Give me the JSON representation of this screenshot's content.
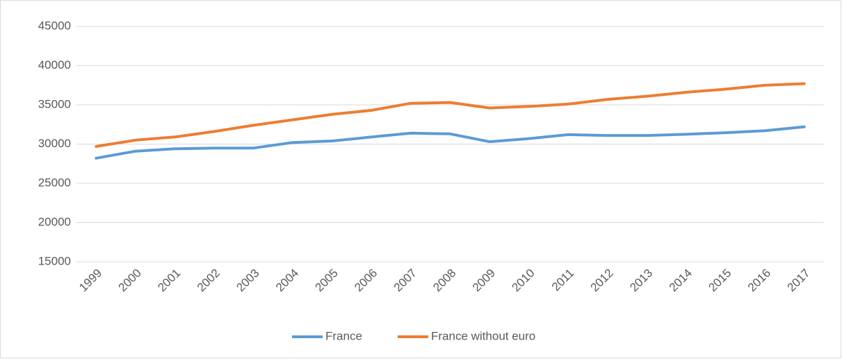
{
  "chart_data": {
    "type": "line",
    "categories": [
      "1999",
      "2000",
      "2001",
      "2002",
      "2003",
      "2004",
      "2005",
      "2006",
      "2007",
      "2008",
      "2009",
      "2010",
      "2011",
      "2012",
      "2013",
      "2014",
      "2015",
      "2016",
      "2017"
    ],
    "series": [
      {
        "name": "France",
        "color": "#5b9bd5",
        "values": [
          28200,
          29100,
          29400,
          29500,
          29500,
          30200,
          30400,
          30900,
          31400,
          31300,
          30300,
          30700,
          31200,
          31100,
          31100,
          31250,
          31450,
          31700,
          32200
        ]
      },
      {
        "name": "France without euro",
        "color": "#ed7d31",
        "values": [
          29700,
          30500,
          30900,
          31600,
          32400,
          33100,
          33800,
          34300,
          35200,
          35300,
          34600,
          34800,
          35100,
          35700,
          36100,
          36600,
          37000,
          37500,
          37700
        ]
      }
    ],
    "ylim": [
      15000,
      45000
    ],
    "yticks": [
      15000,
      20000,
      25000,
      30000,
      35000,
      40000,
      45000
    ],
    "grid": true,
    "legend": "bottom"
  }
}
